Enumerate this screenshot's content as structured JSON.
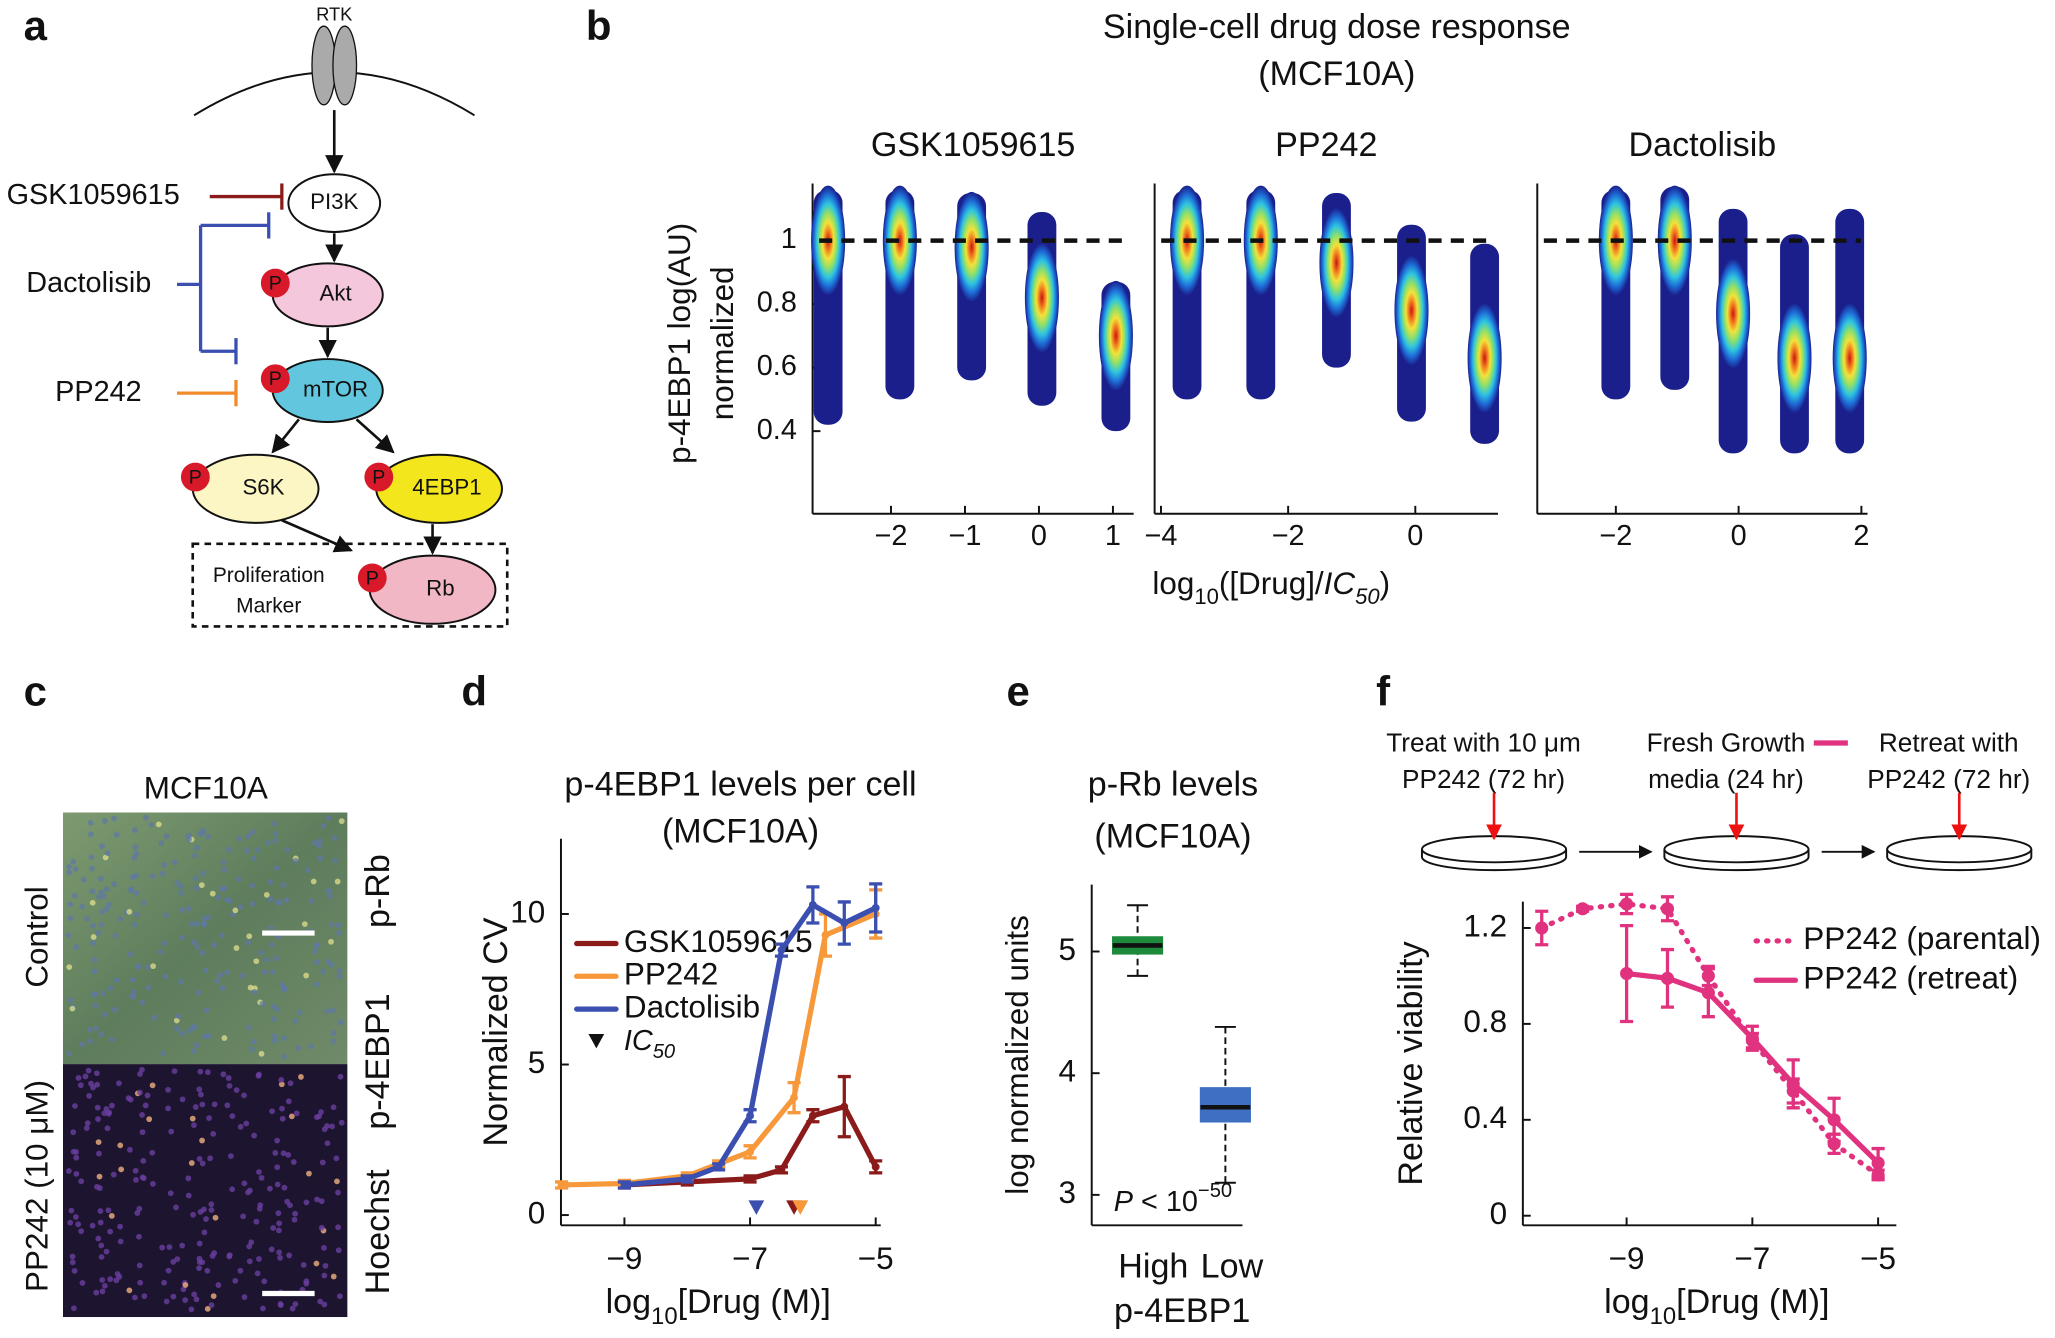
{
  "panel_labels": [
    "a",
    "b",
    "c",
    "d",
    "e",
    "f"
  ],
  "pathway": {
    "receptor": "RTK",
    "nodes": [
      "PI3K",
      "Akt",
      "mTOR",
      "S6K",
      "4EBP1",
      "Rb"
    ],
    "phospho": "P",
    "box_label": [
      "Proliferation",
      "Marker"
    ],
    "drugs": [
      {
        "name": "GSK1059615",
        "color": "#8b1a1a"
      },
      {
        "name": "Dactolisib",
        "color": "#3a4fb0"
      },
      {
        "name": "PP242",
        "color": "#f08a2a"
      }
    ]
  },
  "micrograph": {
    "title": "MCF10A",
    "rows": [
      "Control",
      "PP242 (10 μM)"
    ],
    "stains": [
      {
        "name": "p-Rb",
        "color": "#e8232a"
      },
      {
        "name": "p-4EBP1",
        "color": "#1f9a3f"
      },
      {
        "name": "Hoechst",
        "color": "#3a4fb0"
      }
    ]
  },
  "chart_data": [
    {
      "type": "strip",
      "title": "Single-cell drug dose response",
      "subtitle": "(MCF10A)",
      "ylabel": [
        "p-4EBP1 log(AU)",
        "normalized"
      ],
      "xlabel": [
        "log",
        "10",
        "([Drug]/",
        "IC",
        "50",
        ")"
      ],
      "ylim": [
        0.14,
        1.18
      ],
      "yticks": [
        0.4,
        0.6,
        0.8,
        1
      ],
      "reference_line": 1,
      "colormap": [
        "#1a1f8c",
        "#1e6fd8",
        "#2ec4e0",
        "#8fe06a",
        "#f2e23a",
        "#f07a1e",
        "#c81414"
      ],
      "panels": [
        {
          "title": "GSK1059615",
          "xlim": [
            -3.06,
            1.28
          ],
          "xticks": [
            {
              "value": -2,
              "label": "−2"
            },
            {
              "value": -1,
              "label": "−1"
            },
            0,
            1
          ],
          "x": [
            -2.85,
            -1.88,
            -0.91,
            0.04,
            1.04
          ],
          "center": [
            1.0,
            1.0,
            0.98,
            0.82,
            0.7
          ],
          "high": [
            1.16,
            1.16,
            1.15,
            1.09,
            0.87
          ],
          "low": [
            0.42,
            0.5,
            0.56,
            0.48,
            0.4
          ]
        },
        {
          "title": "PP242",
          "xlim": [
            -4.1,
            1.3
          ],
          "xticks": [
            {
              "value": -4,
              "label": "−4"
            },
            {
              "value": -2,
              "label": "−2"
            },
            0
          ],
          "x": [
            -3.59,
            -2.43,
            -1.24,
            -0.06,
            1.09
          ],
          "center": [
            1.0,
            1.0,
            0.93,
            0.78,
            0.63
          ],
          "high": [
            1.16,
            1.16,
            1.15,
            1.05,
            0.99
          ],
          "low": [
            0.5,
            0.5,
            0.6,
            0.43,
            0.36
          ]
        },
        {
          "title": "Dactolisib",
          "xlim": [
            -3.28,
            2.1
          ],
          "xticks": [
            {
              "value": -2,
              "label": "−2"
            },
            0,
            2
          ],
          "x": [
            -2.0,
            -1.04,
            -0.09,
            0.91,
            1.81
          ],
          "center": [
            1.0,
            1.0,
            0.77,
            0.63,
            0.63
          ],
          "high": [
            1.16,
            1.17,
            1.1,
            1.02,
            1.1
          ],
          "low": [
            0.5,
            0.53,
            0.33,
            0.33,
            0.33
          ]
        }
      ]
    },
    {
      "type": "line",
      "title": "p-4EBP1 levels per cell",
      "subtitle": "(MCF10A)",
      "ylabel": "Normalized CV",
      "xlabel": [
        "log",
        "10",
        "[Drug (M)]"
      ],
      "xlim": [
        -10.01,
        -4.92
      ],
      "ylim": [
        -0.34,
        12.5
      ],
      "xticks": [
        {
          "value": -9,
          "label": "−9"
        },
        {
          "value": -7,
          "label": "−7"
        },
        {
          "value": -5,
          "label": "−5"
        }
      ],
      "yticks": [
        0,
        5,
        10
      ],
      "legend": "center left",
      "ic50_label": [
        "IC",
        "50"
      ],
      "series": [
        {
          "name": "GSK1059615",
          "color": "#8b1a1a",
          "x": [
            -9,
            -8,
            -7,
            -6.5,
            -6,
            -5.5,
            -5
          ],
          "values": [
            1.0,
            1.1,
            1.2,
            1.5,
            3.3,
            3.6,
            1.6
          ],
          "errors": [
            0.1,
            0.1,
            0.1,
            0.1,
            0.2,
            1.0,
            0.2
          ],
          "ic50": -6.3
        },
        {
          "name": "PP242",
          "color": "#f7983a",
          "x": [
            -10,
            -9,
            -8,
            -7.5,
            -7,
            -6.3,
            -5.8,
            -5
          ],
          "values": [
            1.0,
            1.05,
            1.3,
            1.7,
            2.1,
            3.9,
            9.3,
            10.0
          ],
          "errors": [
            0.1,
            0.1,
            0.1,
            0.1,
            0.2,
            0.5,
            0.7,
            0.8
          ],
          "ic50": -6.2
        },
        {
          "name": "Dactolisib",
          "color": "#3a4fb0",
          "x": [
            -9,
            -8,
            -7.5,
            -7,
            -6.5,
            -6,
            -5.5,
            -5
          ],
          "values": [
            1.0,
            1.2,
            1.6,
            3.3,
            8.8,
            10.3,
            9.7,
            10.2
          ],
          "errors": [
            0.1,
            0.1,
            0.1,
            0.2,
            0.2,
            0.6,
            0.7,
            0.8
          ],
          "ic50": -6.9
        }
      ]
    },
    {
      "type": "box",
      "title": "p-Rb levels",
      "subtitle": "(MCF10A)",
      "ylabel": "log normalized units",
      "categories": [
        "High",
        "Low"
      ],
      "xlabel": "p-4EBP1",
      "ylim": [
        2.75,
        5.55
      ],
      "yticks": [
        3,
        4,
        5
      ],
      "annotation": [
        "P",
        " < 10",
        "−50"
      ],
      "boxes": [
        {
          "color": "#1e8a3c",
          "min": 4.8,
          "q1": 4.98,
          "median": 5.05,
          "q3": 5.12,
          "max": 5.38
        },
        {
          "color": "#3f6fc0",
          "min": 3.1,
          "q1": 3.6,
          "median": 3.72,
          "q3": 3.88,
          "max": 4.38
        }
      ]
    },
    {
      "type": "line",
      "protocol": [
        [
          "Treat with 10 μm",
          "PP242 (72 hr)"
        ],
        [
          "Fresh Growth",
          "media (24 hr)"
        ],
        [
          "Retreat with",
          "PP242 (72 hr)"
        ]
      ],
      "ylabel": "Relative viability",
      "xlabel": [
        "log",
        "10",
        "[Drug (M)]"
      ],
      "xlim": [
        -10.65,
        -4.71
      ],
      "ylim": [
        -0.04,
        1.31
      ],
      "xticks": [
        {
          "value": -9,
          "label": "−9"
        },
        {
          "value": -7,
          "label": "−7"
        },
        {
          "value": -5,
          "label": "−5"
        }
      ],
      "yticks": [
        0,
        0.4,
        0.8,
        1.2
      ],
      "legend": "upper right",
      "series": [
        {
          "name": "PP242 (parental)",
          "color": "#e0327f",
          "dash": "dotted",
          "x": [
            -10.35,
            -9.7,
            -9,
            -8.35,
            -7.7,
            -7,
            -6.35,
            -5.7,
            -5
          ],
          "values": [
            1.2,
            1.28,
            1.3,
            1.28,
            1.0,
            0.73,
            0.52,
            0.3,
            0.17
          ],
          "errors": [
            0.07,
            0.01,
            0.04,
            0.05,
            0.04,
            0.03,
            0.05,
            0.04,
            0.02
          ]
        },
        {
          "name": "PP242 (retreat)",
          "color": "#e0327f",
          "dash": "solid",
          "x": [
            -9,
            -8.35,
            -7.7,
            -7,
            -6.35,
            -5.7,
            -5
          ],
          "values": [
            1.01,
            0.99,
            0.93,
            0.74,
            0.55,
            0.4,
            0.22
          ],
          "errors": [
            0.2,
            0.12,
            0.1,
            0.05,
            0.1,
            0.09,
            0.06
          ]
        }
      ]
    }
  ]
}
